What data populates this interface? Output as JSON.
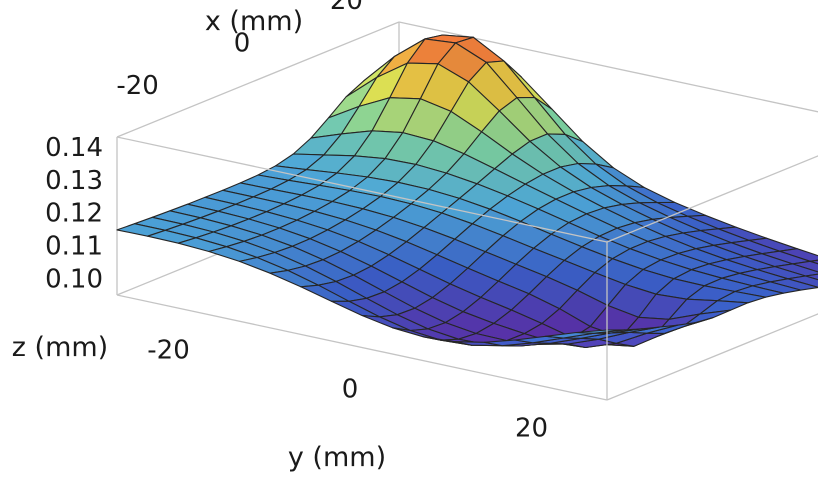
{
  "chart_data": {
    "type": "surface3d",
    "title": "",
    "xlabel": "x (mm)",
    "ylabel": "y (mm)",
    "zlabel": "z (mm)",
    "x_ticks": [
      "-20",
      "0",
      "20"
    ],
    "y_ticks": [
      "-20",
      "0",
      "20"
    ],
    "z_ticks": [
      "0.10",
      "0.11",
      "0.12",
      "0.13",
      "0.14"
    ],
    "xlim": [
      -27,
      27
    ],
    "ylim": [
      -27,
      27
    ],
    "zlim": [
      0.095,
      0.143
    ],
    "grid": false,
    "colormap": "rainbow (purple low to orange high)",
    "colors": [
      "#5a2ea6",
      "#3a5fc8",
      "#4ea8d8",
      "#7fd3a0",
      "#e6df4a",
      "#f07a3a"
    ],
    "mesh": {
      "nx": 17,
      "ny": 17
    },
    "surface_features": [
      {
        "x": 22,
        "y": -18,
        "z": 0.145,
        "kind": "peak"
      },
      {
        "x": 12,
        "y": -6,
        "z": 0.118,
        "kind": "ridge"
      },
      {
        "x": -8,
        "y": 18,
        "z": 0.102,
        "kind": "bump"
      },
      {
        "x": -27,
        "y": -27,
        "z": 0.115,
        "kind": "corner"
      },
      {
        "x": -27,
        "y": 27,
        "z": 0.121,
        "kind": "corner"
      },
      {
        "x": 27,
        "y": 27,
        "z": 0.097,
        "kind": "corner"
      },
      {
        "x": 27,
        "y": -27,
        "z": 0.111,
        "kind": "corner"
      },
      {
        "x": -20,
        "y": 8,
        "z": 0.097,
        "kind": "valley"
      }
    ]
  }
}
